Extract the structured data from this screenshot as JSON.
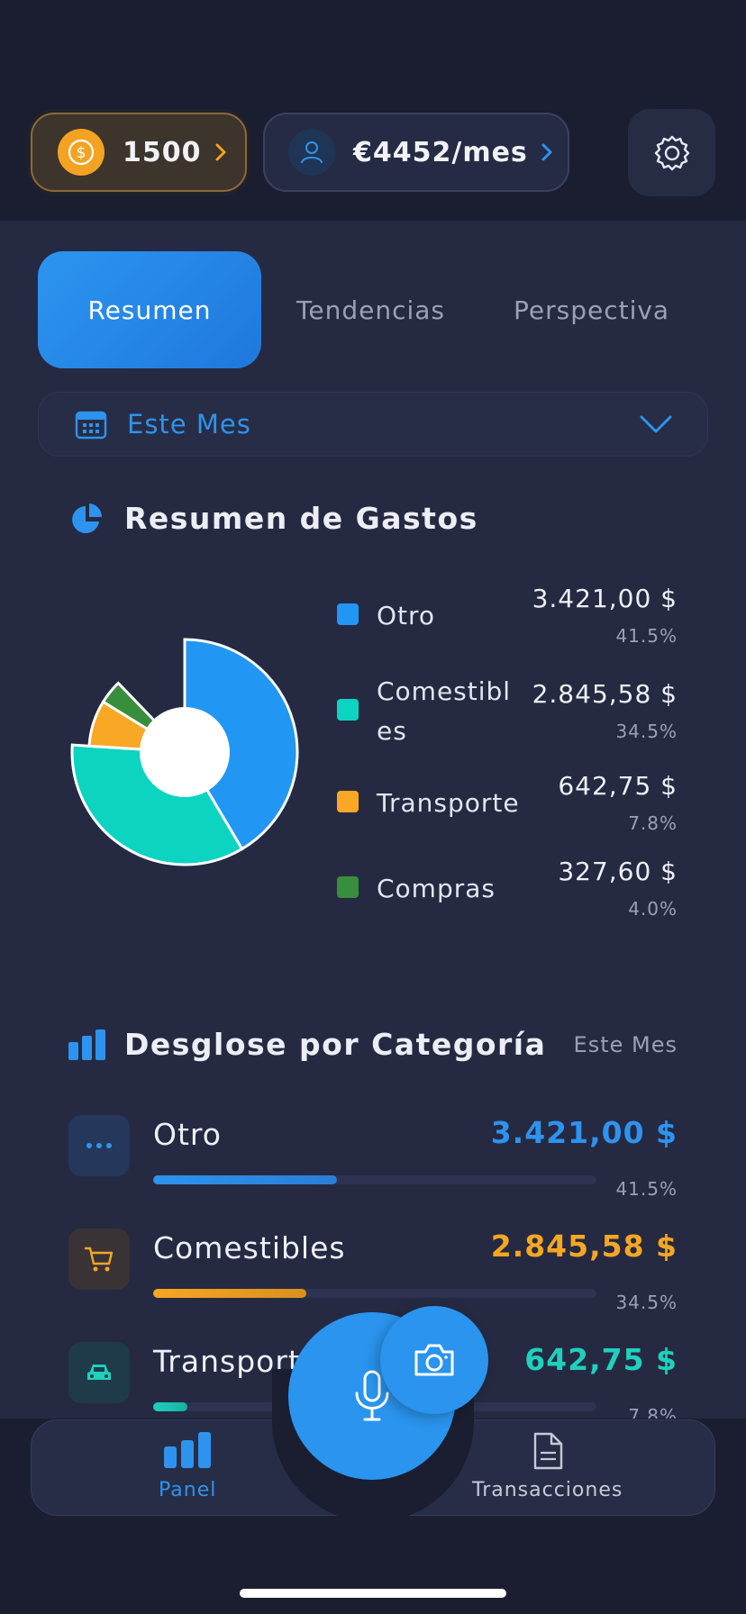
{
  "header": {
    "coins": "1500",
    "budget": "€4452/mes"
  },
  "tabs": [
    {
      "label": "Resumen"
    },
    {
      "label": "Tendencias"
    },
    {
      "label": "Perspectiva"
    }
  ],
  "period": {
    "label": "Este Mes"
  },
  "summary": {
    "title": "Resumen de Gastos",
    "legend": [
      {
        "name": "Otro",
        "value": "3.421,00 $",
        "pct": "41.5%",
        "color": "#2196f3"
      },
      {
        "name": "Comestibles",
        "value": "2.845,58 $",
        "pct": "34.5%",
        "color": "#0cd4c0"
      },
      {
        "name": "Transporte",
        "value": "642,75 $",
        "pct": "7.8%",
        "color": "#f9a825"
      },
      {
        "name": "Compras",
        "value": "327,60 $",
        "pct": "4.0%",
        "color": "#388e3c"
      }
    ]
  },
  "chart_data": {
    "type": "pie",
    "categories": [
      "Otro",
      "Comestibles",
      "Transporte",
      "Compras"
    ],
    "values": [
      3421.0,
      2845.58,
      642.75,
      327.6
    ],
    "percentages": [
      41.5,
      34.5,
      7.8,
      4.0
    ],
    "colors": [
      "#2196f3",
      "#0cd4c0",
      "#f9a825",
      "#388e3c"
    ],
    "title": "Resumen de Gastos"
  },
  "breakdown": {
    "title": "Desglose por Categoría",
    "period": "Este Mes",
    "items": [
      {
        "name": "Otro",
        "value": "3.421,00 $",
        "pct": "41.5%",
        "fraction": 0.415,
        "color": "#2e93ee",
        "icon": "dots-icon",
        "icon_bg": "#25375a"
      },
      {
        "name": "Comestibles",
        "value": "2.845,58 $",
        "pct": "34.5%",
        "fraction": 0.345,
        "color": "#f5a623",
        "icon": "cart-icon",
        "icon_bg": "#3a3336"
      },
      {
        "name": "Transporte",
        "value": "642,75 $",
        "pct": "7.8%",
        "fraction": 0.078,
        "color": "#1fd0bd",
        "icon": "car-icon",
        "icon_bg": "#1f3a49"
      }
    ]
  },
  "nav": {
    "panel": "Panel",
    "transactions": "Transacciones"
  }
}
